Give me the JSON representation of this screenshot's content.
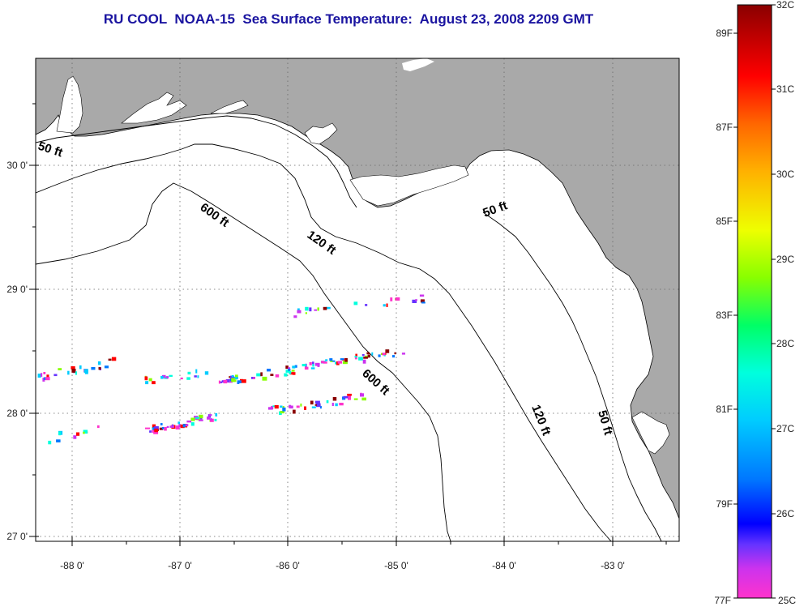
{
  "title": "RU COOL  NOAA-15  Sea Surface Temperature:  August 23, 2008 2209 GMT",
  "map": {
    "lon_labels": [
      "-88 0'",
      "-87 0'",
      "-86 0'",
      "-85 0'",
      "-84 0'",
      "-83 0'"
    ],
    "lat_labels": [
      "30 0'",
      "29 0'",
      "28 0'",
      "27 0'"
    ],
    "depth_labels": [
      "50 ft",
      "600 ft",
      "120 ft",
      "50 ft",
      "600 ft",
      "120 ft",
      "50 ft"
    ]
  },
  "colorbar": {
    "celsius_labels": [
      "32C",
      "31C",
      "30C",
      "29C",
      "28C",
      "27C",
      "26C",
      "25C"
    ],
    "fahrenheit_labels": [
      "89F",
      "87F",
      "85F",
      "83F",
      "81F",
      "79F",
      "77F"
    ]
  },
  "colors": {
    "land": "#a9a9a9",
    "title": "#1a14a0"
  }
}
